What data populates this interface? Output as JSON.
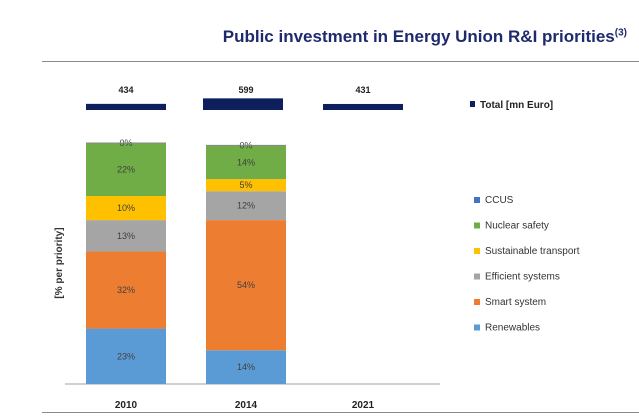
{
  "header": {
    "title": "Public investment in Energy Union R&I priorities",
    "footnote": "(3)"
  },
  "chart_data": {
    "type": "bar",
    "stacked": true,
    "categories": [
      "2010",
      "2014",
      "2021"
    ],
    "ylabel": "[% per priority]",
    "totals": {
      "name": "Total [mn Euro]",
      "values": [
        434,
        599,
        431
      ],
      "color": "#0d1f5c"
    },
    "series": [
      {
        "name": "Renewables",
        "color": "#5b9bd5",
        "values": [
          23,
          14,
          null
        ],
        "labels": [
          "23%",
          "14%",
          ""
        ]
      },
      {
        "name": "Smart system",
        "color": "#ed7d31",
        "values": [
          32,
          54,
          null
        ],
        "labels": [
          "32%",
          "54%",
          ""
        ]
      },
      {
        "name": "Efficient systems",
        "color": "#a5a5a5",
        "values": [
          13,
          12,
          null
        ],
        "labels": [
          "13%",
          "12%",
          ""
        ]
      },
      {
        "name": "Sustainable transport",
        "color": "#ffc000",
        "values": [
          10,
          5,
          null
        ],
        "labels": [
          "10%",
          "5%",
          ""
        ]
      },
      {
        "name": "Nuclear safety",
        "color": "#70ad47",
        "values": [
          22,
          14,
          null
        ],
        "labels": [
          "22%",
          "14%",
          ""
        ]
      },
      {
        "name": "CCUS",
        "color": "#4472c4",
        "values": [
          0,
          0,
          null
        ],
        "labels": [
          "0%",
          "0%",
          ""
        ]
      }
    ],
    "legend": [
      "CCUS",
      "Nuclear safety",
      "Sustainable transport",
      "Efficient systems",
      "Smart system",
      "Renewables"
    ],
    "legend_position": "right",
    "grid": false
  }
}
